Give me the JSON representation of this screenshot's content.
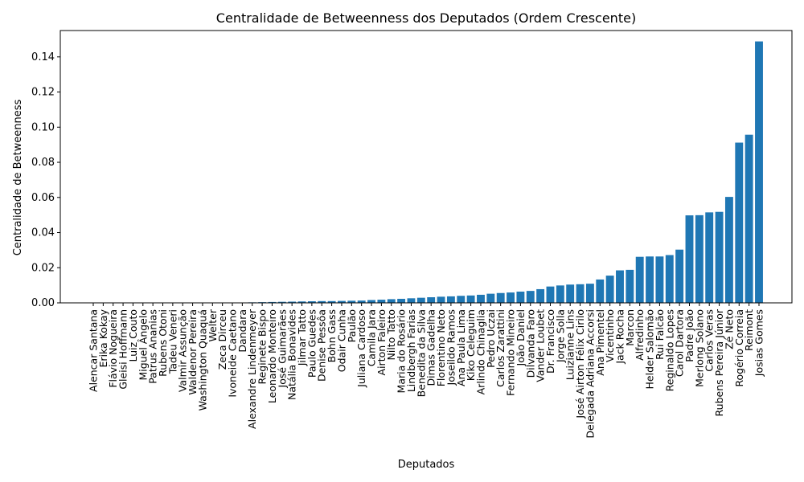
{
  "colors": {
    "bar": "#1f77b4",
    "axis": "#000000",
    "background": "#ffffff"
  },
  "chart_data": {
    "type": "bar",
    "title": "Centralidade de Betweenness dos Deputados (Ordem Crescente)",
    "xlabel": "Deputados",
    "ylabel": "Centralidade de Betweenness",
    "ylim": [
      0,
      0.155
    ],
    "yticks": [
      "0.00",
      "0.02",
      "0.04",
      "0.06",
      "0.08",
      "0.10",
      "0.12",
      "0.14"
    ],
    "grid": false,
    "categories": [
      "Alencar Santana",
      "Erika Kokay",
      "Flávio Nogueira",
      "Gleisi Hoffmann",
      "Luiz Couto",
      "Miguel Ângelo",
      "Patrus Ananias",
      "Rubens Otoni",
      "Tadeu Veneri",
      "Valmir Assunção",
      "Waldenor Pereira",
      "Washington Quaquá",
      "Welter",
      "Zeca Dirceu",
      "Ivoneide Caetano",
      "Dandara",
      "Alexandre Lindenmeyer",
      "Reginete Bispo",
      "Leonardo Monteiro",
      "José Guimarães",
      "Natália Bonavides",
      "Jilmar Tatto",
      "Paulo Guedes",
      "Denise Pessôa",
      "Bohn Gass",
      "Odair Cunha",
      "Paulão",
      "Juliana Cardoso",
      "Camila Jara",
      "Airton Faleiro",
      "Nilto Tatto",
      "Maria do Rosário",
      "Lindbergh Farias",
      "Benedita da Silva",
      "Dimas Gadelha",
      "Florentino Neto",
      "Joseildo Ramos",
      "Ana Paula Lima",
      "Kiko Celeguim",
      "Arlindo Chinaglia",
      "Pedro Uczai",
      "Carlos Zarattini",
      "Fernando Mineiro",
      "João Daniel",
      "Dilvanda Faro",
      "Vander Loubet",
      "Dr. Francisco",
      "Jorge Solla",
      "Luizianne Lins",
      "José Airton Félix Cirilo",
      "Delegada Adriana Accorsi",
      "Ana Pimentel",
      "Vicentinho",
      "Jack Rocha",
      "Marcon",
      "Alfredinho",
      "Helder Salomão",
      "Rui Falcão",
      "Reginaldo Lopes",
      "Carol Dartora",
      "Padre João",
      "Merlong Solano",
      "Carlos Veras",
      "Rubens Pereira Júnior",
      "Zé Neto",
      "Rogério Correia",
      "Reimont",
      "Josias Gomes"
    ],
    "values": [
      0.0,
      0.0,
      0.0,
      0.0,
      0.0,
      0.0,
      0.0,
      0.0,
      0.0,
      0.0,
      0.0,
      0.0,
      0.0,
      0.0,
      0.0,
      0.0,
      0.0003,
      0.0004,
      0.0005,
      0.0006,
      0.0007,
      0.0008,
      0.0009,
      0.001,
      0.001,
      0.0011,
      0.0012,
      0.0013,
      0.0016,
      0.0018,
      0.0021,
      0.0023,
      0.0026,
      0.0029,
      0.0032,
      0.0035,
      0.0037,
      0.004,
      0.0042,
      0.0046,
      0.0052,
      0.0056,
      0.0059,
      0.0064,
      0.0068,
      0.0078,
      0.0093,
      0.0099,
      0.0104,
      0.0106,
      0.0109,
      0.0133,
      0.0155,
      0.0185,
      0.0188,
      0.0262,
      0.0264,
      0.0264,
      0.0272,
      0.0303,
      0.0498,
      0.0499,
      0.0515,
      0.0518,
      0.0603,
      0.0912,
      0.0957,
      0.1488
    ]
  }
}
